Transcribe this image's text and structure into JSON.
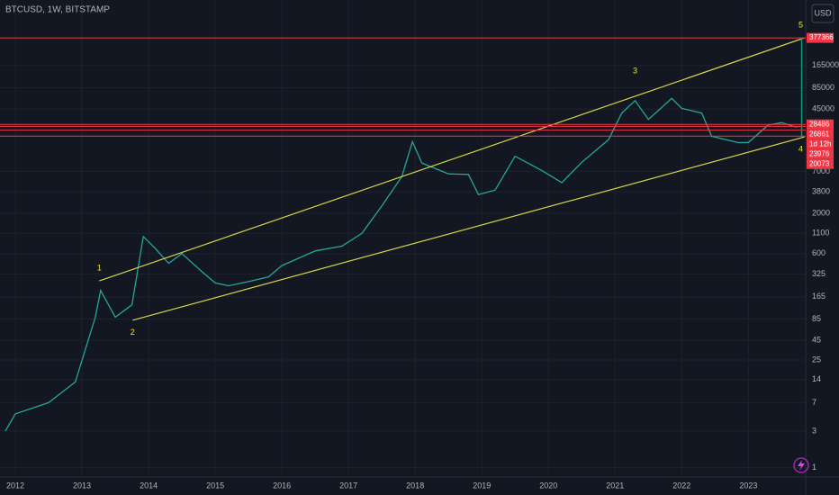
{
  "chart_data": {
    "type": "line",
    "title": "BTCUSD, 1W, BITSTAMP",
    "currency": "USD",
    "log_scale": true,
    "grid": true,
    "color": "#26a69a",
    "x": [
      2011.85,
      2012.0,
      2012.5,
      2012.9,
      2013.2,
      2013.28,
      2013.5,
      2013.75,
      2013.92,
      2014.1,
      2014.3,
      2014.5,
      2014.8,
      2015.0,
      2015.2,
      2015.5,
      2015.8,
      2016.0,
      2016.5,
      2016.9,
      2017.2,
      2017.5,
      2017.8,
      2017.96,
      2018.1,
      2018.5,
      2018.8,
      2018.95,
      2019.2,
      2019.5,
      2019.9,
      2020.2,
      2020.5,
      2020.9,
      2021.1,
      2021.3,
      2021.5,
      2021.85,
      2022.0,
      2022.3,
      2022.45,
      2022.85,
      2023.0,
      2023.3,
      2023.5,
      2023.7,
      2023.78
    ],
    "values": [
      3,
      5,
      7,
      13,
      90,
      200,
      90,
      130,
      1000,
      700,
      450,
      600,
      350,
      250,
      230,
      260,
      300,
      420,
      650,
      750,
      1100,
      2500,
      6000,
      17000,
      9000,
      6500,
      6400,
      3500,
      4000,
      11000,
      7200,
      5000,
      9200,
      18000,
      40000,
      58000,
      33000,
      62000,
      46000,
      40000,
      20000,
      16500,
      16600,
      28000,
      30000,
      26500,
      26861
    ],
    "xlim": [
      2011.77,
      2023.86
    ],
    "xticks": [
      2012,
      2013,
      2014,
      2015,
      2016,
      2017,
      2018,
      2019,
      2020,
      2021,
      2022,
      2023
    ],
    "ylim": [
      0.76,
      1170000
    ],
    "yticks": [
      1,
      3,
      7,
      14,
      25,
      45,
      85,
      165,
      325,
      600,
      1100,
      2000,
      3800,
      7000,
      45000,
      85000,
      165000
    ],
    "levels": [
      377366,
      28486,
      26861,
      23976,
      20073
    ],
    "countdown": "1d 12h",
    "channel": [
      {
        "x": [
          2013.26,
          2023.84
        ],
        "values": [
          266,
          377366
        ]
      },
      {
        "x": [
          2013.76,
          2023.84
        ],
        "values": [
          82,
          19600
        ]
      }
    ],
    "waves": [
      {
        "label": "1",
        "x": 2013.26,
        "value": 266
      },
      {
        "label": "2",
        "x": 2013.76,
        "value": 82
      },
      {
        "label": "3",
        "x": 2021.3,
        "value": 96000
      },
      {
        "label": "4",
        "x": 2023.84,
        "value": 19600
      },
      {
        "label": "5",
        "x": 2023.84,
        "value": 377366
      }
    ]
  }
}
